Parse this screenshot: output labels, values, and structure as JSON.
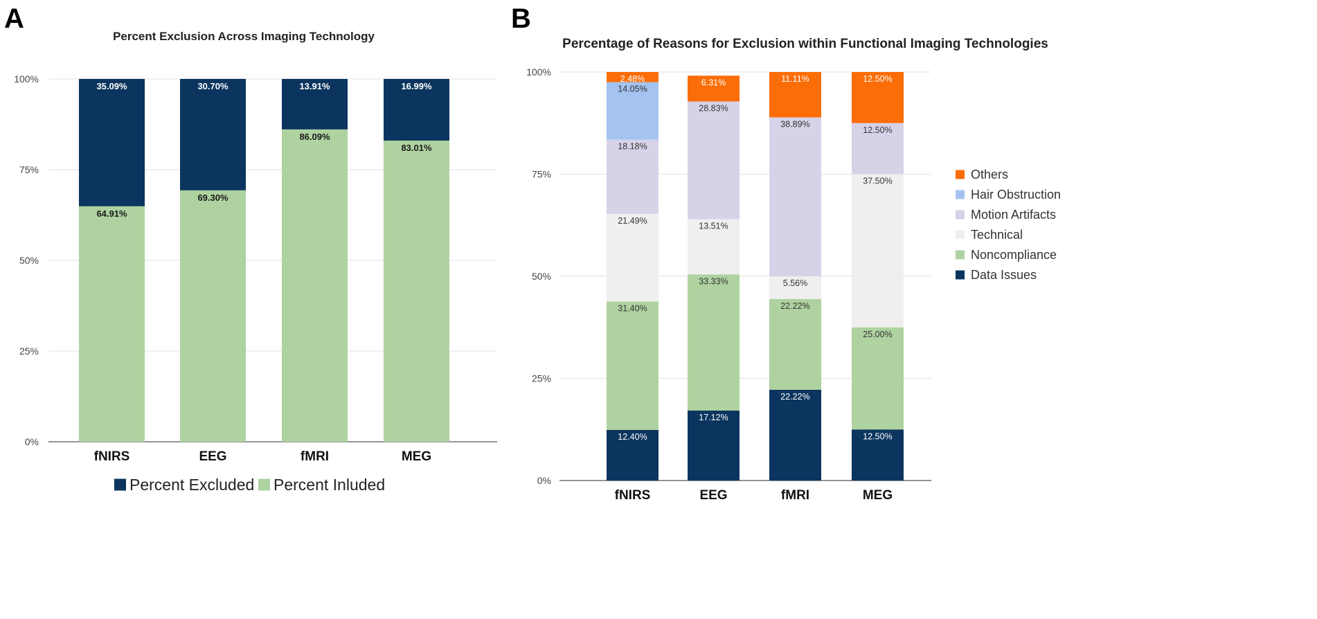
{
  "chart_data": [
    {
      "panel_label": "A",
      "type": "bar",
      "stacked": true,
      "title": "Percent Exclusion Across Imaging Technology",
      "categories": [
        "fNIRS",
        "EEG",
        "fMRI",
        "MEG"
      ],
      "ylim": [
        0,
        100
      ],
      "yticks": [
        0,
        25,
        50,
        75,
        100
      ],
      "ytick_labels": [
        "0%",
        "25%",
        "50%",
        "75%",
        "100%"
      ],
      "grid": true,
      "legend_position": "bottom",
      "series": [
        {
          "name": "Percent Inluded",
          "color": "#aed2a0",
          "label_color": "#1a1a1a",
          "values": [
            64.91,
            69.3,
            86.09,
            83.01
          ],
          "labels": [
            "64.91%",
            "69.30%",
            "86.09%",
            "83.01%"
          ]
        },
        {
          "name": "Percent Excluded",
          "color": "#0b355e",
          "label_color": "#ffffff",
          "values": [
            35.09,
            30.7,
            13.91,
            16.99
          ],
          "labels": [
            "35.09%",
            "30.70%",
            "13.91%",
            "16.99%"
          ]
        }
      ],
      "legend_order": [
        "Percent Excluded",
        "Percent Inluded"
      ]
    },
    {
      "panel_label": "B",
      "type": "bar",
      "stacked": true,
      "title": "Percentage of Reasons for Exclusion within Functional Imaging Technologies",
      "categories": [
        "fNIRS",
        "EEG",
        "fMRI",
        "MEG"
      ],
      "ylim": [
        0,
        100
      ],
      "yticks": [
        0,
        25,
        50,
        75,
        100
      ],
      "ytick_labels": [
        "0%",
        "25%",
        "50%",
        "75%",
        "100%"
      ],
      "grid": true,
      "legend_position": "right",
      "series": [
        {
          "name": "Data Issues",
          "color": "#0b355e",
          "label_color": "#ffffff",
          "values": [
            12.4,
            17.12,
            22.22,
            12.5
          ],
          "labels": [
            "12.40%",
            "17.12%",
            "22.22%",
            "12.50%"
          ]
        },
        {
          "name": "Noncompliance",
          "color": "#aed2a0",
          "label_color": "#333333",
          "values": [
            31.4,
            33.33,
            22.22,
            25.0
          ],
          "labels": [
            "31.40%",
            "33.33%",
            "22.22%",
            "25.00%"
          ]
        },
        {
          "name": "Technical",
          "color": "#efefef",
          "label_color": "#333333",
          "values": [
            21.49,
            13.51,
            5.56,
            37.5
          ],
          "labels": [
            "21.49%",
            "13.51%",
            "5.56%",
            "37.50%"
          ]
        },
        {
          "name": "Motion Artifacts",
          "color": "#d8d2e8",
          "label_color": "#333333",
          "values": [
            18.18,
            28.83,
            38.89,
            12.5
          ],
          "labels": [
            "18.18%",
            "28.83%",
            "38.89%",
            "12.50%"
          ]
        },
        {
          "name": "Hair Obstruction",
          "color": "#a4c3f0",
          "label_color": "#333333",
          "values": [
            14.05,
            0,
            0,
            0
          ],
          "labels": [
            "14.05%",
            "",
            "",
            ""
          ]
        },
        {
          "name": "Others",
          "color": "#fb6d07",
          "label_color": "#ffffff",
          "values": [
            2.48,
            6.31,
            11.11,
            12.5
          ],
          "labels": [
            "2.48%",
            "6.31%",
            "11.11%",
            "12.50%"
          ]
        }
      ],
      "legend_order": [
        "Others",
        "Hair Obstruction",
        "Motion Artifacts",
        "Technical",
        "Noncompliance",
        "Data Issues"
      ]
    }
  ]
}
